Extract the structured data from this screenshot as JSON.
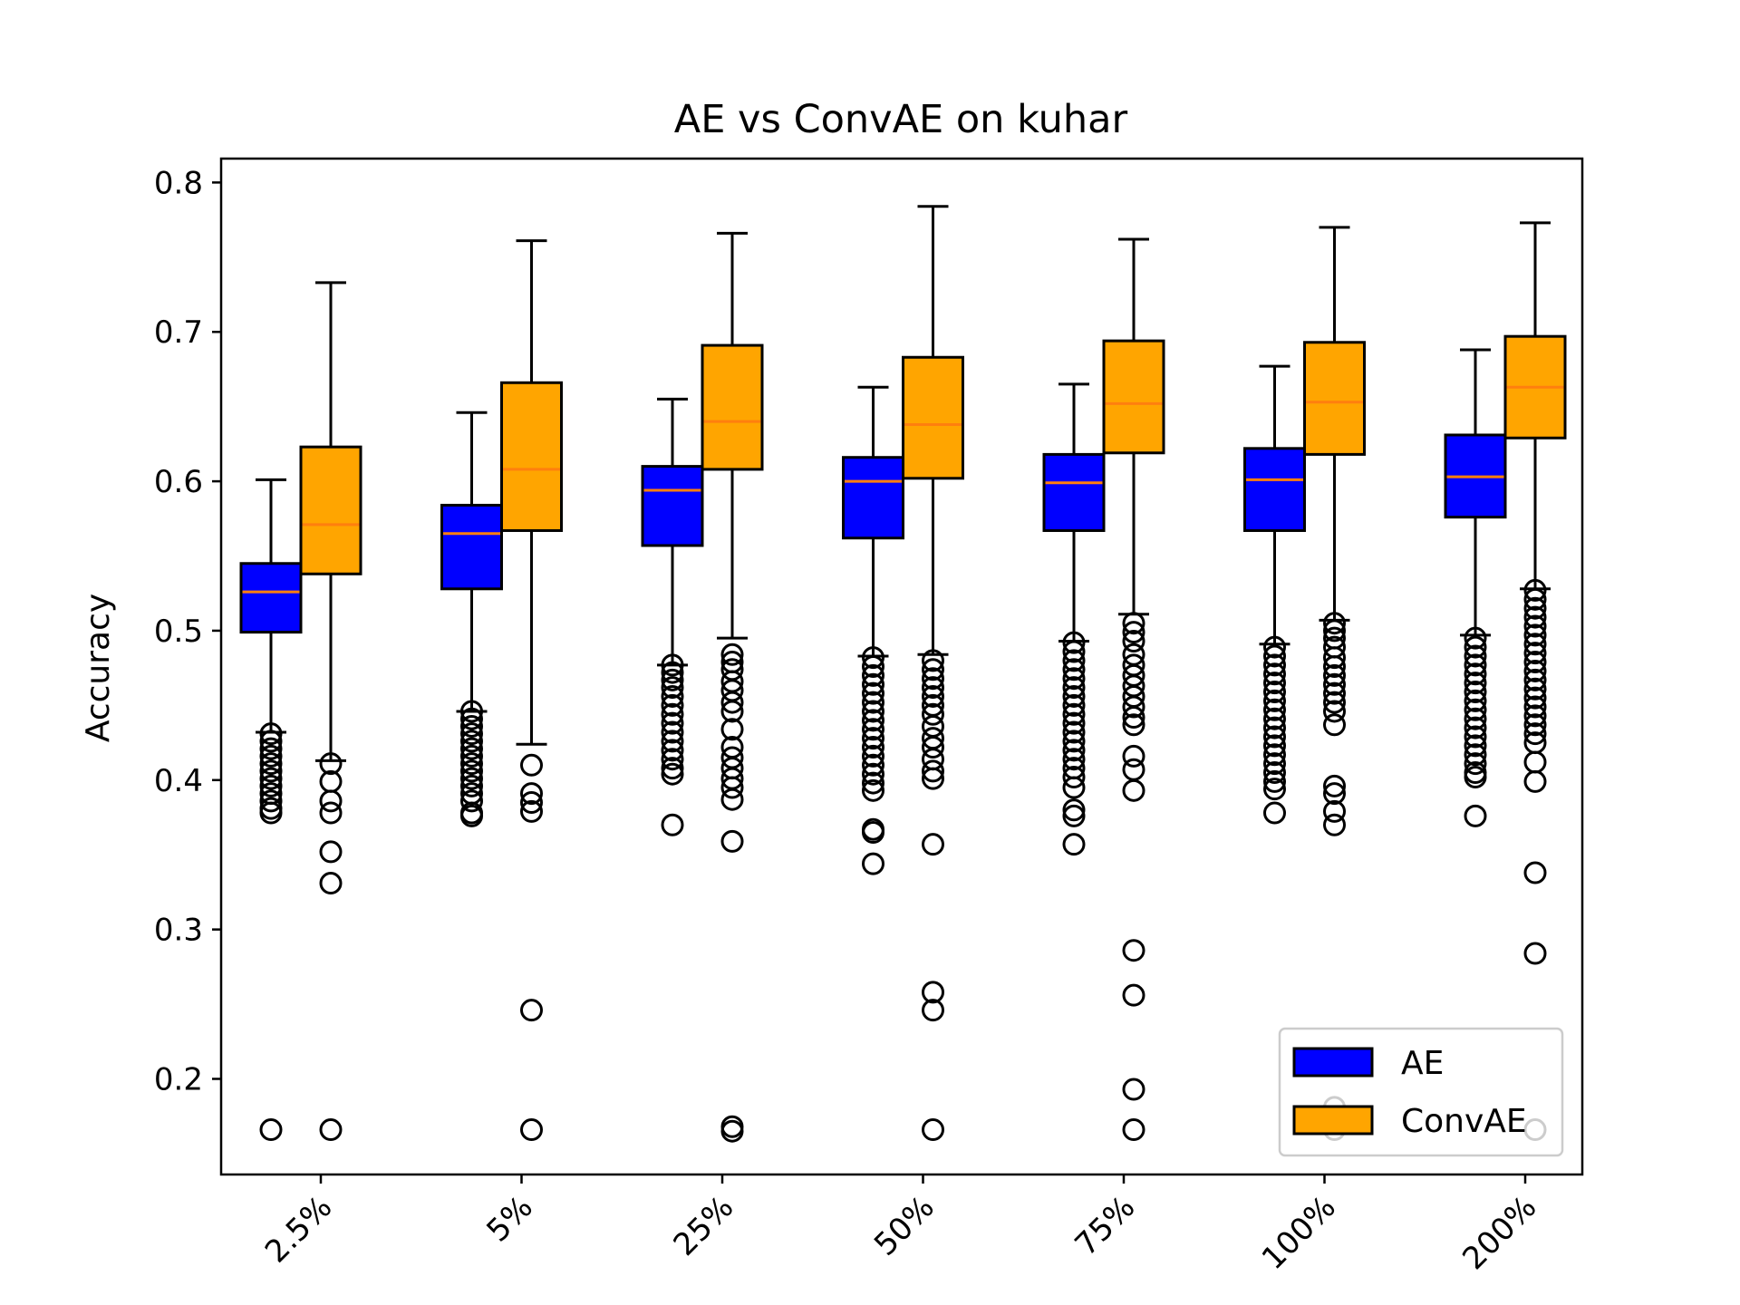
{
  "chart_data": {
    "type": "box",
    "title": "AE vs ConvAE on kuhar",
    "xlabel": "",
    "ylabel": "Accuracy",
    "ylim": [
      0.136,
      0.816
    ],
    "yticks": [
      0.2,
      0.3,
      0.4,
      0.5,
      0.6,
      0.7,
      0.8
    ],
    "ytick_labels": [
      "0.2",
      "0.3",
      "0.4",
      "0.5",
      "0.6",
      "0.7",
      "0.8"
    ],
    "categories": [
      "2.5%",
      "5%",
      "25%",
      "50%",
      "75%",
      "100%",
      "200%"
    ],
    "legend_position": "lower-right",
    "grid": false,
    "series": [
      {
        "name": "AE",
        "color": "#0000ff",
        "median_color": "#ff7f0e",
        "boxes": [
          {
            "whislo": 0.432,
            "q1": 0.499,
            "med": 0.526,
            "q3": 0.545,
            "whishi": 0.601,
            "fliers": [
              0.431,
              0.426,
              0.421,
              0.416,
              0.411,
              0.406,
              0.401,
              0.396,
              0.391,
              0.386,
              0.381,
              0.378,
              0.166
            ]
          },
          {
            "whislo": 0.446,
            "q1": 0.528,
            "med": 0.565,
            "q3": 0.584,
            "whishi": 0.646,
            "fliers": [
              0.446,
              0.441,
              0.436,
              0.431,
              0.426,
              0.421,
              0.416,
              0.411,
              0.406,
              0.401,
              0.396,
              0.391,
              0.386,
              0.378,
              0.376
            ]
          },
          {
            "whislo": 0.477,
            "q1": 0.557,
            "med": 0.594,
            "q3": 0.61,
            "whishi": 0.655,
            "fliers": [
              0.477,
              0.472,
              0.467,
              0.462,
              0.456,
              0.45,
              0.444,
              0.438,
              0.432,
              0.426,
              0.42,
              0.414,
              0.408,
              0.404,
              0.37
            ]
          },
          {
            "whislo": 0.483,
            "q1": 0.562,
            "med": 0.6,
            "q3": 0.616,
            "whishi": 0.663,
            "fliers": [
              0.482,
              0.476,
              0.47,
              0.464,
              0.458,
              0.452,
              0.446,
              0.44,
              0.434,
              0.428,
              0.422,
              0.416,
              0.41,
              0.404,
              0.398,
              0.393,
              0.367,
              0.365,
              0.344
            ]
          },
          {
            "whislo": 0.493,
            "q1": 0.567,
            "med": 0.599,
            "q3": 0.618,
            "whishi": 0.665,
            "fliers": [
              0.492,
              0.486,
              0.48,
              0.474,
              0.468,
              0.462,
              0.456,
              0.45,
              0.444,
              0.438,
              0.432,
              0.426,
              0.42,
              0.414,
              0.408,
              0.402,
              0.395,
              0.38,
              0.376,
              0.357
            ]
          },
          {
            "whislo": 0.491,
            "q1": 0.567,
            "med": 0.601,
            "q3": 0.622,
            "whishi": 0.677,
            "fliers": [
              0.489,
              0.483,
              0.477,
              0.471,
              0.465,
              0.459,
              0.453,
              0.447,
              0.441,
              0.435,
              0.429,
              0.423,
              0.417,
              0.411,
              0.405,
              0.399,
              0.394,
              0.378
            ]
          },
          {
            "whislo": 0.497,
            "q1": 0.576,
            "med": 0.603,
            "q3": 0.631,
            "whishi": 0.688,
            "fliers": [
              0.495,
              0.489,
              0.483,
              0.477,
              0.471,
              0.465,
              0.459,
              0.453,
              0.447,
              0.441,
              0.435,
              0.429,
              0.423,
              0.417,
              0.411,
              0.405,
              0.402,
              0.376
            ]
          }
        ]
      },
      {
        "name": "ConvAE",
        "color": "#ffa500",
        "median_color": "#ff7f0e",
        "boxes": [
          {
            "whislo": 0.413,
            "q1": 0.538,
            "med": 0.571,
            "q3": 0.623,
            "whishi": 0.733,
            "fliers": [
              0.411,
              0.399,
              0.386,
              0.378,
              0.352,
              0.331,
              0.166
            ]
          },
          {
            "whislo": 0.424,
            "q1": 0.567,
            "med": 0.608,
            "q3": 0.666,
            "whishi": 0.761,
            "fliers": [
              0.41,
              0.391,
              0.385,
              0.379,
              0.246,
              0.166
            ]
          },
          {
            "whislo": 0.495,
            "q1": 0.608,
            "med": 0.64,
            "q3": 0.691,
            "whishi": 0.766,
            "fliers": [
              0.484,
              0.479,
              0.474,
              0.466,
              0.46,
              0.452,
              0.446,
              0.434,
              0.422,
              0.415,
              0.408,
              0.401,
              0.395,
              0.387,
              0.359,
              0.168,
              0.165
            ]
          },
          {
            "whislo": 0.484,
            "q1": 0.602,
            "med": 0.638,
            "q3": 0.683,
            "whishi": 0.784,
            "fliers": [
              0.48,
              0.474,
              0.468,
              0.462,
              0.456,
              0.45,
              0.444,
              0.436,
              0.428,
              0.422,
              0.414,
              0.406,
              0.401,
              0.357,
              0.258,
              0.246,
              0.166
            ]
          },
          {
            "whislo": 0.511,
            "q1": 0.619,
            "med": 0.652,
            "q3": 0.694,
            "whishi": 0.762,
            "fliers": [
              0.505,
              0.499,
              0.493,
              0.484,
              0.477,
              0.47,
              0.463,
              0.456,
              0.449,
              0.442,
              0.437,
              0.416,
              0.407,
              0.393,
              0.286,
              0.256,
              0.193,
              0.166
            ]
          },
          {
            "whislo": 0.507,
            "q1": 0.618,
            "med": 0.653,
            "q3": 0.693,
            "whishi": 0.77,
            "fliers": [
              0.505,
              0.5,
              0.495,
              0.489,
              0.482,
              0.476,
              0.47,
              0.464,
              0.458,
              0.452,
              0.446,
              0.437,
              0.396,
              0.391,
              0.379,
              0.37,
              0.181,
              0.166
            ]
          },
          {
            "whislo": 0.528,
            "q1": 0.629,
            "med": 0.663,
            "q3": 0.697,
            "whishi": 0.773,
            "fliers": [
              0.527,
              0.521,
              0.515,
              0.509,
              0.503,
              0.497,
              0.491,
              0.485,
              0.479,
              0.473,
              0.467,
              0.461,
              0.455,
              0.449,
              0.443,
              0.437,
              0.431,
              0.425,
              0.412,
              0.399,
              0.338,
              0.284,
              0.166
            ]
          }
        ]
      }
    ]
  }
}
